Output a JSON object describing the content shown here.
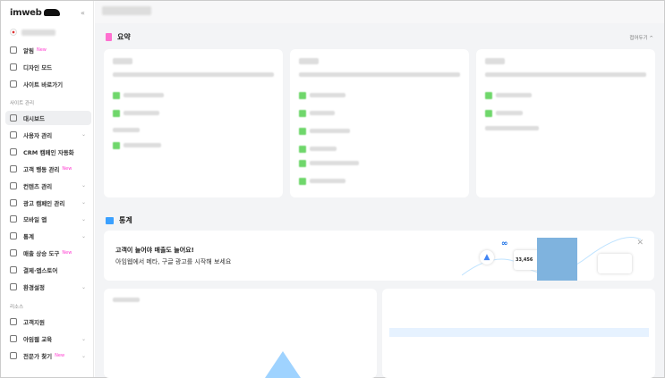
{
  "sidebar": {
    "logo": "imweb",
    "top_items": [
      {
        "label": "알림",
        "badge": "New"
      },
      {
        "label": "디자인 모드"
      },
      {
        "label": "사이트 바로가기"
      }
    ],
    "section_site": "사이트 관리",
    "site_items": [
      {
        "label": "대시보드",
        "active": true
      },
      {
        "label": "사용자 관리",
        "chevron": true
      },
      {
        "label": "CRM 캠페인 자동화"
      },
      {
        "label": "고객 행동 관리",
        "badge": "New"
      },
      {
        "label": "컨텐츠 관리",
        "chevron": true
      },
      {
        "label": "광고 캠페인 관리",
        "chevron": true
      },
      {
        "label": "모바일 앱",
        "chevron": true
      },
      {
        "label": "통계",
        "chevron": true
      },
      {
        "label": "매출 상승 도구",
        "badge": "New"
      },
      {
        "label": "결제·앱스토어"
      },
      {
        "label": "환경설정",
        "chevron": true
      }
    ],
    "section_resources": "리소스",
    "resource_items": [
      {
        "label": "고객지원"
      },
      {
        "label": "아임웹 교육",
        "chevron": true
      },
      {
        "label": "전문가 찾기",
        "badge": "New",
        "chevron": true
      }
    ]
  },
  "main": {
    "summary_title": "요약",
    "fold_label": "접어두기 ^",
    "stats_title": "통계",
    "banner": {
      "line1": "고객이 늘어야 매출도 늘어요!",
      "line2": "아임웹에서 메타, 구글 광고를 시작해 보세요",
      "metric_value": "33,456"
    },
    "accent": "#ff3bd0"
  }
}
